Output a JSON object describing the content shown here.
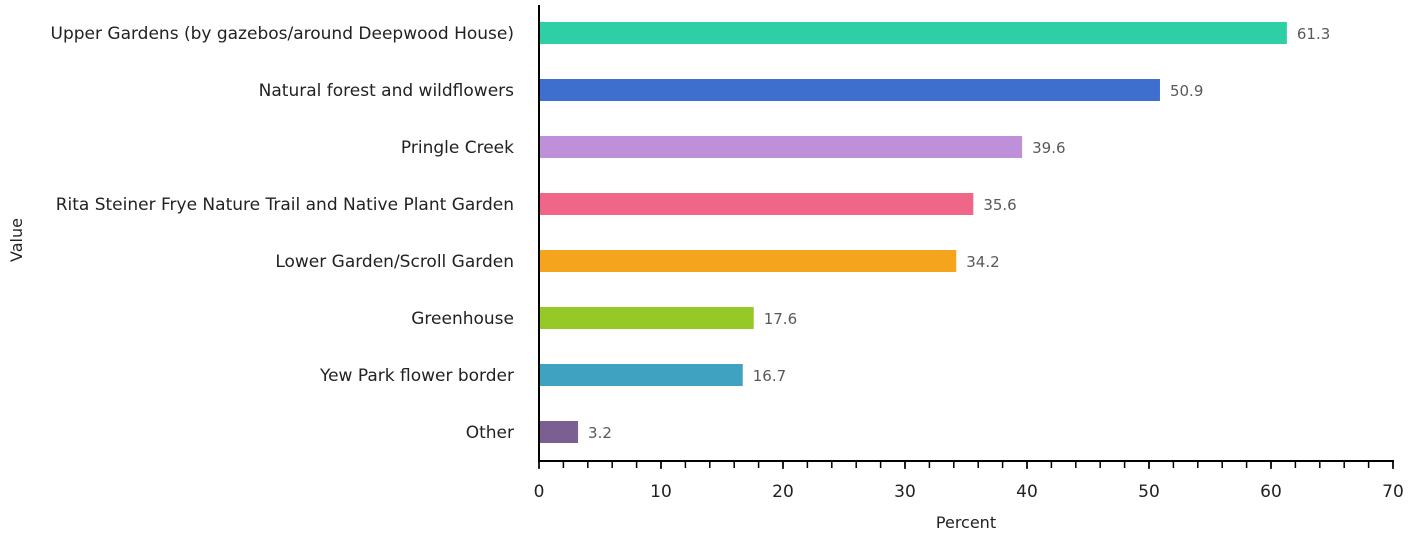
{
  "chart_data": {
    "type": "bar",
    "orientation": "horizontal",
    "title": "",
    "xlabel": "Percent",
    "ylabel": "Value",
    "xlim": [
      0,
      70
    ],
    "major_ticks": [
      0,
      10,
      20,
      30,
      40,
      50,
      60,
      70
    ],
    "minor_tick_step": 2,
    "grid": false,
    "data_labels": true,
    "categories": [
      "Upper Gardens (by gazebos/around Deepwood House)",
      "Natural forest and wildflowers",
      "Pringle Creek",
      "Rita Steiner Frye Nature Trail and Native Plant Garden",
      "Lower Garden/Scroll Garden",
      "Greenhouse",
      "Yew Park flower border",
      "Other"
    ],
    "values": [
      61.3,
      50.9,
      39.6,
      35.6,
      34.2,
      17.6,
      16.7,
      3.2
    ],
    "value_labels": [
      "61.3",
      "50.9",
      "39.6",
      "35.6",
      "34.2",
      "17.6",
      "16.7",
      "3.2"
    ],
    "colors": [
      "#2ecfa4",
      "#3e6fce",
      "#be90da",
      "#f06689",
      "#f5a41e",
      "#96c928",
      "#3fa2c1",
      "#7b5f91"
    ]
  }
}
